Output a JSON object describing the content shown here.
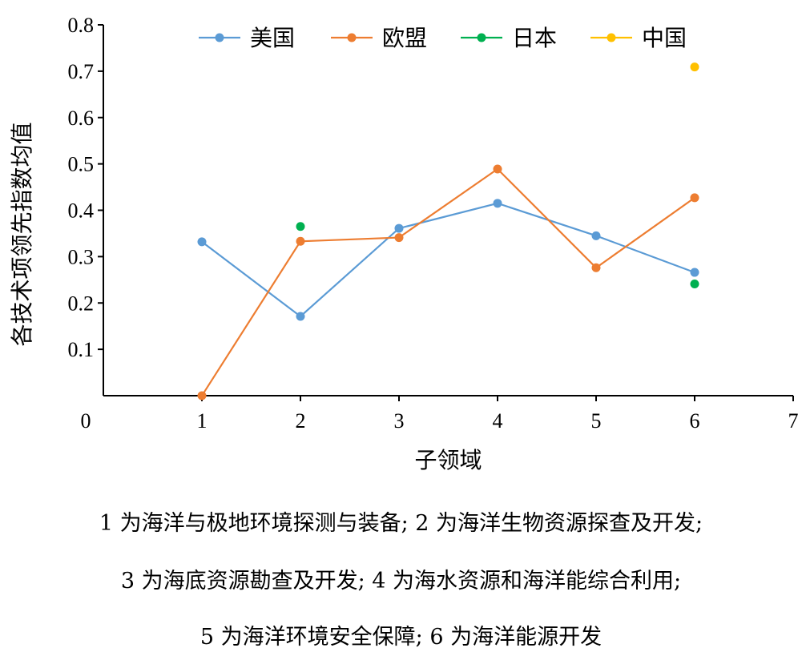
{
  "chart_data": {
    "type": "line",
    "xlabel": "子领域",
    "ylabel": "各技术项领先指数均值",
    "xlim": [
      0,
      7
    ],
    "ylim": [
      0,
      0.8
    ],
    "x_ticks": [
      "0",
      "1",
      "2",
      "3",
      "4",
      "5",
      "6",
      "7"
    ],
    "y_ticks": [
      "0.1",
      "0.2",
      "0.3",
      "0.4",
      "0.5",
      "0.6",
      "0.7",
      "0.8"
    ],
    "grid": false,
    "legend_position": "top",
    "series": [
      {
        "name": "美国",
        "color": "#5B9BD5",
        "line": true,
        "points": [
          [
            1,
            0.332
          ],
          [
            2,
            0.171
          ],
          [
            3,
            0.361
          ],
          [
            4,
            0.415
          ],
          [
            5,
            0.345
          ],
          [
            6,
            0.266
          ]
        ]
      },
      {
        "name": "欧盟",
        "color": "#ED7D31",
        "line": true,
        "points": [
          [
            1,
            0.0
          ],
          [
            2,
            0.333
          ],
          [
            3,
            0.341
          ],
          [
            4,
            0.489
          ],
          [
            5,
            0.276
          ],
          [
            6,
            0.427
          ]
        ]
      },
      {
        "name": "日本",
        "color": "#00B050",
        "line": false,
        "points": [
          [
            2,
            0.365
          ],
          [
            6,
            0.241
          ]
        ]
      },
      {
        "name": "中国",
        "color": "#FFC000",
        "line": false,
        "points": [
          [
            6,
            0.709
          ]
        ]
      }
    ]
  },
  "caption": {
    "line1": "1 为海洋与极地环境探测与装备; 2 为海洋生物资源探查及开发;",
    "line2": "3 为海底资源勘查及开发; 4 为海水资源和海洋能综合利用;",
    "line3": "5 为海洋环境安全保障; 6 为海洋能源开发"
  }
}
